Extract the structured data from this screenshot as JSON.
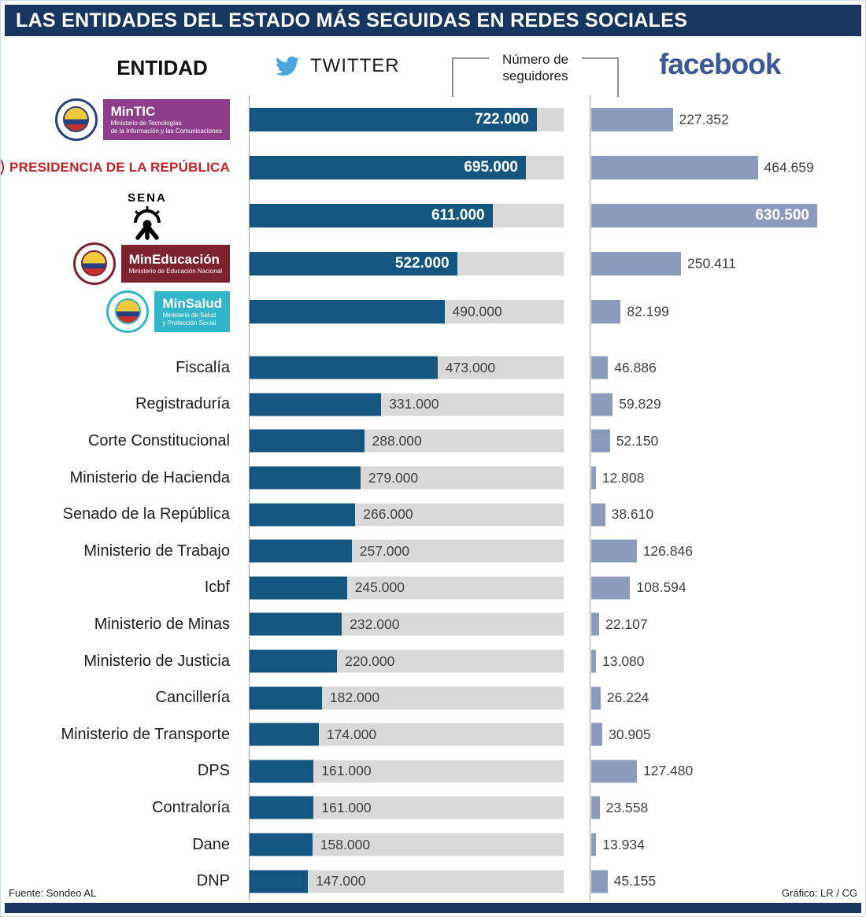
{
  "title": "LAS ENTIDADES DEL ESTADO MÁS SEGUIDAS EN REDES SOCIALES",
  "header": {
    "entity_column": "ENTIDAD",
    "twitter_label": "TWITTER",
    "followers_note": "Número de seguidores",
    "facebook_label": "facebook"
  },
  "footer": {
    "source": "Fuente: Sondeo AL",
    "credit": "Gráfico: LR / CG"
  },
  "colors": {
    "header_bg": "#17365f",
    "twitter_bar": "#14567f",
    "twitter_track": "#d9d9d9",
    "facebook_bar": "#8b9bbd",
    "facebook_brand": "#3b5998",
    "twitter_brand": "#4ba6dd",
    "presidencia_red": "#c42127",
    "mintic_purple": "#8e3d8b",
    "mineducacion_maroon": "#7e2230",
    "minsalud_teal": "#31b7c9"
  },
  "chart_data": {
    "type": "bar",
    "orientation": "horizontal",
    "title": "LAS ENTIDADES DEL ESTADO MÁS SEGUIDAS EN REDES SOCIALES",
    "value_note": "Número de seguidores",
    "grid": false,
    "legend_position": "top",
    "categories": [
      "MinTIC",
      "Presidencia de la República",
      "SENA",
      "MinEducación",
      "MinSalud",
      "Fiscalía",
      "Registraduría",
      "Corte Constitucional",
      "Ministerio de Hacienda",
      "Senado de la República",
      "Ministerio de Trabajo",
      "Icbf",
      "Ministerio de Minas",
      "Ministerio de Justicia",
      "Cancillería",
      "Ministerio de Transporte",
      "DPS",
      "Contraloría",
      "Dane",
      "DNP"
    ],
    "series": [
      {
        "name": "Twitter",
        "values": [
          722000,
          695000,
          611000,
          522000,
          490000,
          473000,
          331000,
          288000,
          279000,
          266000,
          257000,
          245000,
          232000,
          220000,
          182000,
          174000,
          161000,
          161000,
          158000,
          147000
        ]
      },
      {
        "name": "Facebook",
        "values": [
          227352,
          464659,
          630500,
          250411,
          82199,
          46886,
          59829,
          52150,
          12808,
          38610,
          126846,
          108594,
          22107,
          13080,
          26224,
          30905,
          127480,
          23558,
          13934,
          45155
        ]
      }
    ],
    "axis": {
      "twitter_max": 790000,
      "facebook_max": 648000,
      "twitter_label_inside_min": 500000,
      "facebook_label_inside_min": 600000
    }
  },
  "logos": [
    {
      "row": 0,
      "kind": "box",
      "ring": "#27417e",
      "box_bg": "#8e3d8b",
      "title": "MinTIC",
      "subtitle_lines": [
        "Ministerio de Tecnologías",
        "de la Información y las Comunicaciones"
      ]
    },
    {
      "row": 1,
      "kind": "inline-text",
      "ring": "#c42127",
      "text": "PRESIDENCIA DE LA REPÚBLICA",
      "color": "#c42127"
    },
    {
      "row": 2,
      "kind": "sena",
      "text": "SENA"
    },
    {
      "row": 3,
      "kind": "box",
      "ring": "#7e2230",
      "box_bg": "#7e2230",
      "title": "MinEducación",
      "subtitle_lines": [
        "Ministerio de Educación Nacional"
      ]
    },
    {
      "row": 4,
      "kind": "box",
      "ring": "#31b7c9",
      "box_bg": "#31b7c9",
      "title": "MinSalud",
      "subtitle_lines": [
        "Ministerio de Salud",
        "y Protección Social"
      ]
    }
  ]
}
